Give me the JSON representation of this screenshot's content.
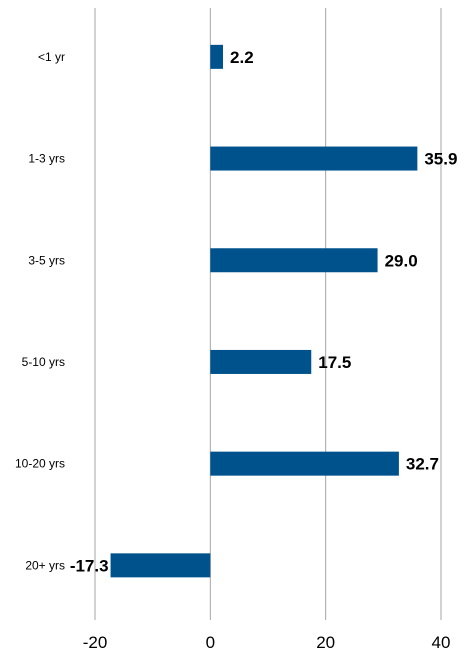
{
  "chart_data": {
    "type": "bar",
    "orientation": "horizontal",
    "categories": [
      "<1 yr",
      "1-3 yrs",
      "3-5 yrs",
      "5-10 yrs",
      "10-20 yrs",
      "20+ yrs"
    ],
    "values": [
      2.2,
      35.9,
      29.0,
      17.5,
      32.7,
      -17.3
    ],
    "value_labels": [
      "2.2",
      "35.9",
      "29.0",
      "17.5",
      "32.7",
      "-17.3"
    ],
    "x_ticks": [
      -20,
      0,
      20,
      40
    ],
    "x_tick_labels": [
      "-20",
      "0",
      "20",
      "40"
    ],
    "xlim": [
      -20,
      40
    ],
    "grid": "vertical",
    "legend": "none",
    "bar_color": "#00528c",
    "grid_color": "#a6a6a6"
  }
}
